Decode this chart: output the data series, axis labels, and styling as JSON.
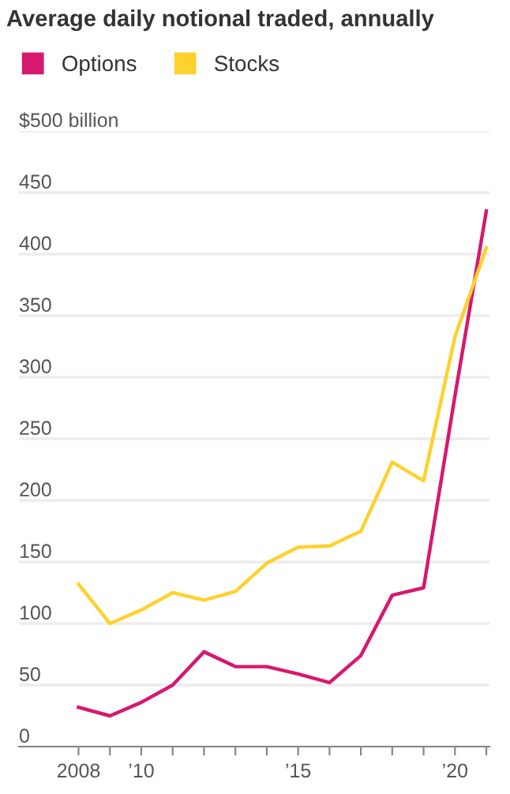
{
  "chart_data": {
    "type": "line",
    "title": "Average daily notional traded, annually",
    "x": [
      2008,
      2009,
      2010,
      2011,
      2012,
      2013,
      2014,
      2015,
      2016,
      2017,
      2018,
      2019,
      2020,
      2021
    ],
    "series": [
      {
        "name": "Options",
        "color": "#d6186f",
        "values": [
          32,
          25,
          36,
          50,
          77,
          65,
          65,
          59,
          52,
          74,
          123,
          129,
          285,
          435
        ]
      },
      {
        "name": "Stocks",
        "color": "#ffd12e",
        "values": [
          132,
          100,
          111,
          125,
          119,
          126,
          149,
          162,
          163,
          175,
          231,
          216,
          333,
          405
        ]
      }
    ],
    "xlim": [
      2006.1,
      2021.1
    ],
    "xticks": [
      2008,
      {
        "value": 2009,
        "label": null
      },
      {
        "value": 2010,
        "label": "’10"
      },
      {
        "value": 2011,
        "label": null
      },
      {
        "value": 2012,
        "label": null
      },
      {
        "value": 2013,
        "label": null
      },
      {
        "value": 2014,
        "label": null
      },
      {
        "value": 2015,
        "label": "’15"
      },
      {
        "value": 2016,
        "label": null
      },
      {
        "value": 2017,
        "label": null
      },
      {
        "value": 2018,
        "label": null
      },
      {
        "value": 2019,
        "label": null
      },
      {
        "value": 2020,
        "label": "’20"
      },
      {
        "value": 2021,
        "label": null
      }
    ],
    "ylim": [
      0,
      500
    ],
    "yticks": [
      0,
      50,
      100,
      150,
      200,
      250,
      300,
      350,
      400,
      450,
      {
        "value": 500,
        "label": "$500 billion"
      }
    ],
    "grid": "y",
    "legend": "top left",
    "marker": "none",
    "line_style": "solid"
  }
}
